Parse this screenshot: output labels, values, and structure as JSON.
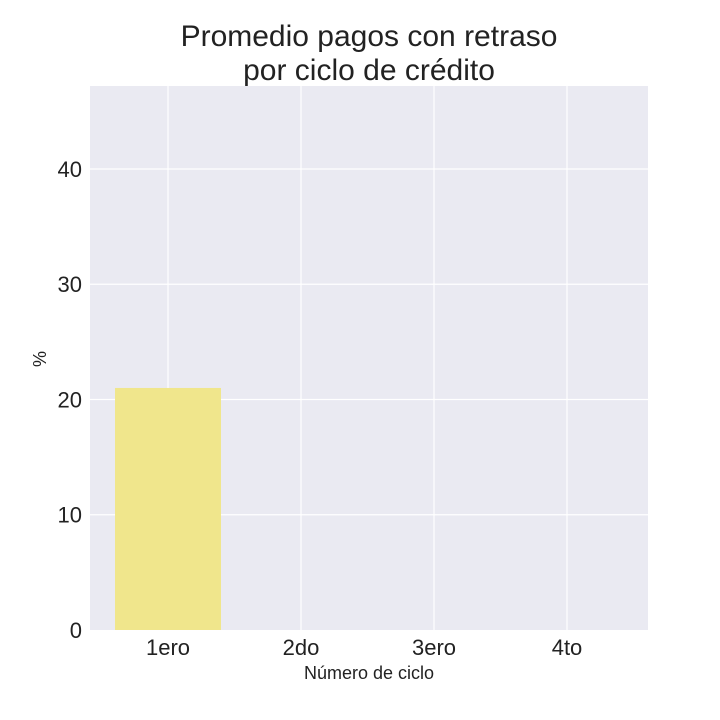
{
  "chart_data": {
    "type": "bar",
    "title_lines": [
      "Promedio pagos con retraso",
      "por ciclo de crédito"
    ],
    "categories": [
      "1ero",
      "2do",
      "3ero",
      "4to"
    ],
    "values": [
      21,
      0,
      0,
      0
    ],
    "xlabel": "Número de ciclo",
    "ylabel": "%",
    "ylim": [
      0,
      47.2
    ],
    "yticks": [
      0,
      10,
      20,
      30,
      40
    ],
    "grid": true,
    "colors": {
      "background": "#EAEAF2",
      "grid": "#FFFFFF",
      "bar": "#F0E68C",
      "text": "#222222"
    }
  }
}
